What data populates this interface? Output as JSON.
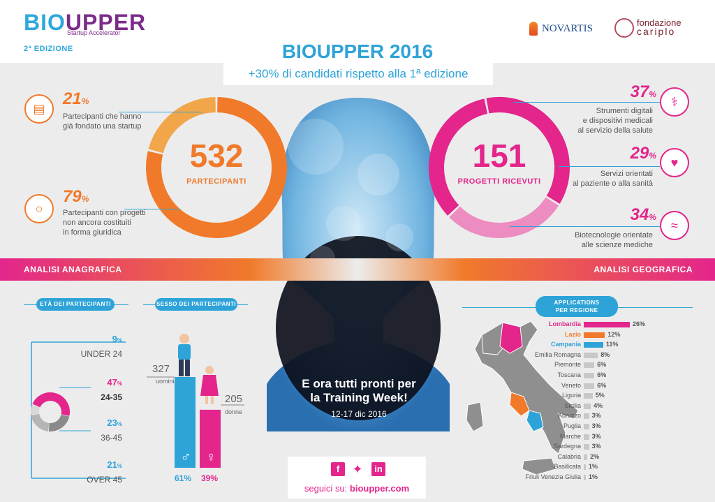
{
  "header": {
    "logo_bio": "BIO",
    "logo_upper": "UPPER",
    "logo_sub": "Startup Accelerator",
    "edition": "2ª EDIZIONE",
    "partner1": "NOVARTIS",
    "partner2_line1": "fondazione",
    "partner2_line2": "cariplo"
  },
  "title": "BIOUPPER 2016",
  "subtitle": "+30% di candidati rispetto alla 1ª edizione",
  "participants": {
    "number": "532",
    "label": "PARTECIPANTI",
    "stats": [
      {
        "pct": "21",
        "unit": "%",
        "line1": "Partecipanti che hanno",
        "line2": "già fondato una startup",
        "line3": ""
      },
      {
        "pct": "79",
        "unit": "%",
        "line1": "Partecipanti con progetti",
        "line2": "non ancora costituiti",
        "line3": "in forma giuridica"
      }
    ],
    "ring_shares": [
      0.21,
      0.79
    ]
  },
  "projects": {
    "number": "151",
    "label": "PROGETTI RICEVUTI",
    "stats": [
      {
        "pct": "37",
        "unit": "%",
        "line1": "Strumenti digitali",
        "line2": "e dispositivi medicali",
        "line3": "al servizio della salute"
      },
      {
        "pct": "29",
        "unit": "%",
        "line1": "Servizi orientati",
        "line2": "al paziente o alla sanità",
        "line3": ""
      },
      {
        "pct": "34",
        "unit": "%",
        "line1": "Biotecnologie orientate",
        "line2": "alle scienze mediche",
        "line3": ""
      }
    ],
    "ring_shares": [
      0.37,
      0.29,
      0.34
    ]
  },
  "sections": {
    "left": "ANALISI ANAGRAFICA",
    "right": "ANALISI GEOGRAFICA",
    "age_title": "ETÀ DEI PARTECIPANTI",
    "sex_title": "SESSO DEI PARTECIPANTI",
    "region_title_1": "APPLICATIONS",
    "region_title_2": "PER REGIONE"
  },
  "ages": [
    {
      "pct": "9",
      "unit": "%",
      "label": "UNDER 24",
      "share": 0.09
    },
    {
      "pct": "47",
      "unit": "%",
      "label": "24-35",
      "share": 0.47
    },
    {
      "pct": "23",
      "unit": "%",
      "label": "36-45",
      "share": 0.23
    },
    {
      "pct": "21",
      "unit": "%",
      "label": "OVER 45",
      "share": 0.21
    }
  ],
  "gender": {
    "male_count": "327",
    "male_label": "uomini",
    "male_symbol": "♂",
    "male_pct": "61%",
    "female_count": "205",
    "female_label": "donne",
    "female_symbol": "♀",
    "female_pct": "39%"
  },
  "regions": [
    {
      "name": "Lombardia",
      "value": 26,
      "label": "26%",
      "color": "#e3258c",
      "highlight": true
    },
    {
      "name": "Lazio",
      "value": 12,
      "label": "12%",
      "color": "#f07a2a",
      "highlight": true
    },
    {
      "name": "Campania",
      "value": 11,
      "label": "11%",
      "color": "#2ea3d8",
      "highlight": true
    },
    {
      "name": "Emilia Romagna",
      "value": 8,
      "label": "8%",
      "color": "#c8c8c8",
      "highlight": false
    },
    {
      "name": "Piemonte",
      "value": 6,
      "label": "6%",
      "color": "#c8c8c8",
      "highlight": false
    },
    {
      "name": "Toscana",
      "value": 6,
      "label": "6%",
      "color": "#c8c8c8",
      "highlight": false
    },
    {
      "name": "Veneto",
      "value": 6,
      "label": "6%",
      "color": "#c8c8c8",
      "highlight": false
    },
    {
      "name": "Liguria",
      "value": 5,
      "label": "5%",
      "color": "#c8c8c8",
      "highlight": false
    },
    {
      "name": "Sicilia",
      "value": 4,
      "label": "4%",
      "color": "#c8c8c8",
      "highlight": false
    },
    {
      "name": "Abruzzo",
      "value": 3,
      "label": "3%",
      "color": "#c8c8c8",
      "highlight": false
    },
    {
      "name": "Puglia",
      "value": 3,
      "label": "3%",
      "color": "#c8c8c8",
      "highlight": false
    },
    {
      "name": "Marche",
      "value": 3,
      "label": "3%",
      "color": "#c8c8c8",
      "highlight": false
    },
    {
      "name": "Sardegna",
      "value": 3,
      "label": "3%",
      "color": "#c8c8c8",
      "highlight": false
    },
    {
      "name": "Calabria",
      "value": 2,
      "label": "2%",
      "color": "#c8c8c8",
      "highlight": false
    },
    {
      "name": "Basilicata",
      "value": 1,
      "label": "1%",
      "color": "#c8c8c8",
      "highlight": false
    },
    {
      "name": "Friuli Venezia Giulia",
      "value": 1,
      "label": "1%",
      "color": "#c8c8c8",
      "highlight": false
    }
  ],
  "training": {
    "line1": "E ora tutti pronti per",
    "line2": "la Training Week!",
    "date": "12-17 dic 2016"
  },
  "social": {
    "prefix": "seguici su: ",
    "site": "bioupper.com",
    "icons": [
      "facebook-icon",
      "twitter-icon",
      "linkedin-icon"
    ]
  },
  "colors": {
    "blue": "#2ea3d8",
    "orange": "#f07a2a",
    "light_orange": "#f2a64a",
    "pink": "#e3258c",
    "light_pink": "#ec8cc0",
    "purple": "#7b2c8a",
    "grey": "#8a8a8a"
  }
}
